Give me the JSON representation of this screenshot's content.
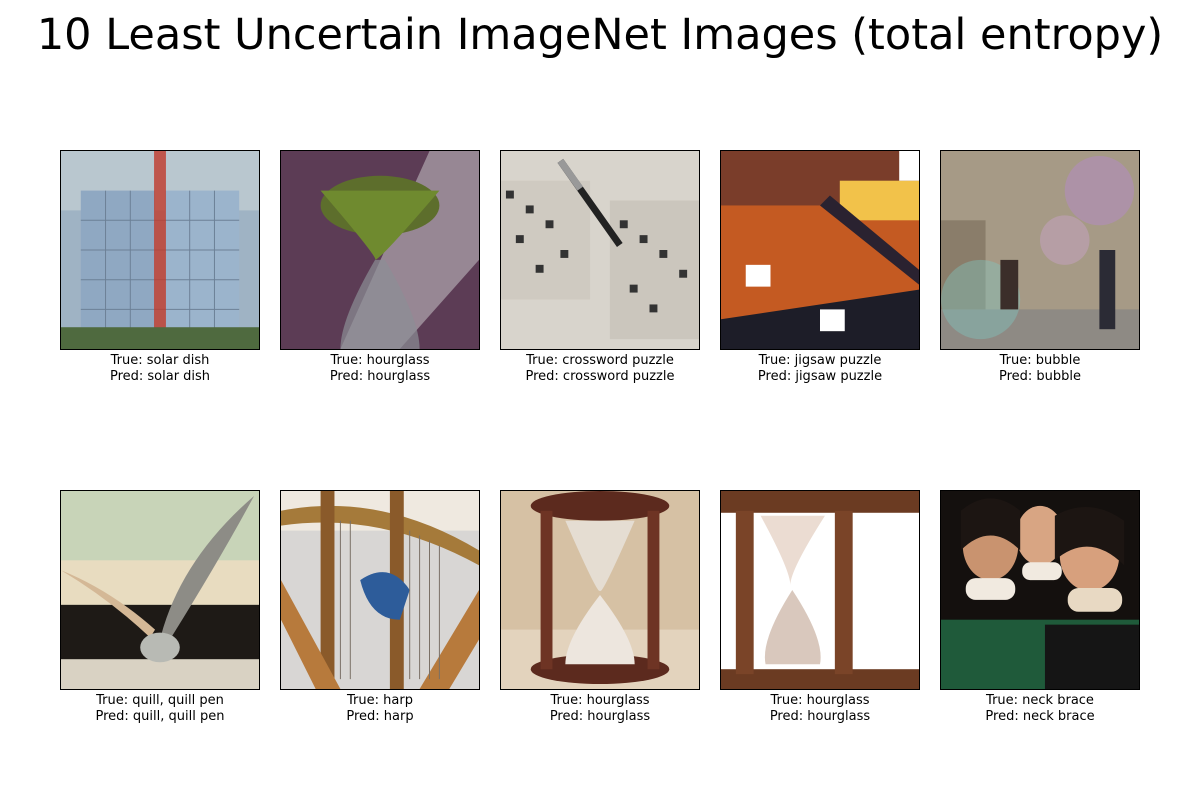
{
  "figure": {
    "title": "10 Least Uncertain ImageNet Images (total entropy)"
  },
  "images": [
    {
      "true_label": "True: solar dish",
      "pred_label": "Pred: solar dish"
    },
    {
      "true_label": "True: hourglass",
      "pred_label": "Pred: hourglass"
    },
    {
      "true_label": "True: crossword puzzle",
      "pred_label": "Pred: crossword puzzle"
    },
    {
      "true_label": "True: jigsaw puzzle",
      "pred_label": "Pred: jigsaw puzzle"
    },
    {
      "true_label": "True: bubble",
      "pred_label": "Pred: bubble"
    },
    {
      "true_label": "True: quill, quill pen",
      "pred_label": "Pred: quill, quill pen"
    },
    {
      "true_label": "True: harp",
      "pred_label": "Pred: harp"
    },
    {
      "true_label": "True: hourglass",
      "pred_label": "Pred: hourglass"
    },
    {
      "true_label": "True: hourglass",
      "pred_label": "Pred: hourglass"
    },
    {
      "true_label": "True: neck brace",
      "pred_label": "Pred: neck brace"
    }
  ]
}
